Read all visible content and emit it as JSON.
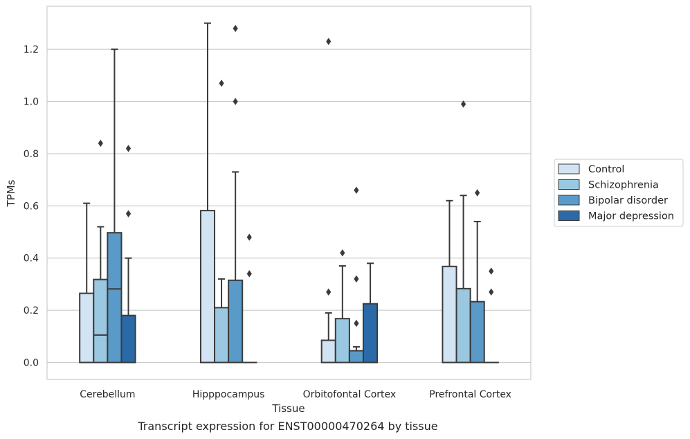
{
  "caption": "Transcript expression for ENST00000470264 by tissue",
  "chart_data": {
    "type": "box",
    "xlabel": "Tissue",
    "ylabel": "TPMs",
    "ylim": [
      -0.065,
      1.365
    ],
    "yticks": [
      0.0,
      0.2,
      0.4,
      0.6,
      0.8,
      1.0,
      1.2
    ],
    "ytick_labels": [
      "0.0",
      "0.2",
      "0.4",
      "0.6",
      "0.8",
      "1.0",
      "1.2"
    ],
    "grid": "horizontal",
    "legend_position": "right",
    "categories": [
      "Cerebellum",
      "Hipppocampus",
      "Orbitofontal Cortex",
      "Prefrontal Cortex"
    ],
    "series": [
      {
        "name": "Control",
        "color": "#d2e3f3",
        "boxes": [
          {
            "q1": 0.0,
            "median": 0.0,
            "q3": 0.265,
            "whisker_low": 0.0,
            "whisker_high": 0.61,
            "outliers": []
          },
          {
            "q1": 0.0,
            "median": 0.0,
            "q3": 0.582,
            "whisker_low": 0.0,
            "whisker_high": 1.3,
            "outliers": []
          },
          {
            "q1": 0.0,
            "median": 0.0,
            "q3": 0.085,
            "whisker_low": 0.0,
            "whisker_high": 0.19,
            "outliers": [
              0.27,
              1.23
            ]
          },
          {
            "q1": 0.0,
            "median": 0.0,
            "q3": 0.368,
            "whisker_low": 0.0,
            "whisker_high": 0.62,
            "outliers": []
          }
        ]
      },
      {
        "name": "Schizophrenia",
        "color": "#9ac8e0",
        "boxes": [
          {
            "q1": 0.0,
            "median": 0.105,
            "q3": 0.318,
            "whisker_low": 0.0,
            "whisker_high": 0.52,
            "outliers": [
              0.84
            ]
          },
          {
            "q1": 0.0,
            "median": 0.0,
            "q3": 0.21,
            "whisker_low": 0.0,
            "whisker_high": 0.32,
            "outliers": [
              1.07
            ]
          },
          {
            "q1": 0.0,
            "median": 0.0,
            "q3": 0.168,
            "whisker_low": 0.0,
            "whisker_high": 0.37,
            "outliers": [
              0.42
            ]
          },
          {
            "q1": 0.0,
            "median": 0.0,
            "q3": 0.283,
            "whisker_low": 0.0,
            "whisker_high": 0.64,
            "outliers": [
              0.99
            ]
          }
        ]
      },
      {
        "name": "Bipolar disorder",
        "color": "#5a9ac8",
        "boxes": [
          {
            "q1": 0.0,
            "median": 0.282,
            "q3": 0.497,
            "whisker_low": 0.0,
            "whisker_high": 1.2,
            "outliers": []
          },
          {
            "q1": 0.0,
            "median": 0.0,
            "q3": 0.315,
            "whisker_low": 0.0,
            "whisker_high": 0.73,
            "outliers": [
              1.0,
              1.28
            ]
          },
          {
            "q1": 0.0,
            "median": 0.0,
            "q3": 0.045,
            "whisker_low": 0.0,
            "whisker_high": 0.06,
            "outliers": [
              0.15,
              0.32,
              0.66
            ]
          },
          {
            "q1": 0.0,
            "median": 0.0,
            "q3": 0.233,
            "whisker_low": 0.0,
            "whisker_high": 0.54,
            "outliers": [
              0.65
            ]
          }
        ]
      },
      {
        "name": "Major depression",
        "color": "#2a6aa8",
        "boxes": [
          {
            "q1": 0.0,
            "median": 0.0,
            "q3": 0.18,
            "whisker_low": 0.0,
            "whisker_high": 0.4,
            "outliers": [
              0.57,
              0.82
            ]
          },
          {
            "q1": 0.0,
            "median": 0.0,
            "q3": 0.0,
            "whisker_low": 0.0,
            "whisker_high": 0.0,
            "outliers": [
              0.34,
              0.48
            ]
          },
          {
            "q1": 0.0,
            "median": 0.0,
            "q3": 0.225,
            "whisker_low": 0.0,
            "whisker_high": 0.38,
            "outliers": []
          },
          {
            "q1": 0.0,
            "median": 0.0,
            "q3": 0.0,
            "whisker_low": 0.0,
            "whisker_high": 0.0,
            "outliers": [
              0.27,
              0.35
            ]
          }
        ]
      }
    ]
  }
}
